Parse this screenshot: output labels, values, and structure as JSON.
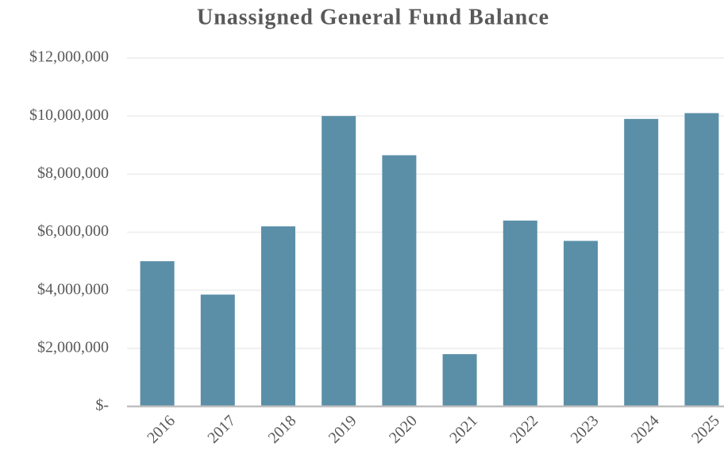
{
  "chart_data": {
    "type": "bar",
    "title": "Unassigned General Fund Balance",
    "categories": [
      "2016",
      "2017",
      "2018",
      "2019",
      "2020",
      "2021",
      "2022",
      "2023",
      "2024",
      "2025"
    ],
    "values": [
      5000000,
      3850000,
      6200000,
      10000000,
      8650000,
      1800000,
      6400000,
      5700000,
      9900000,
      10100000
    ],
    "color": "#5b8fa8",
    "ylim": [
      0,
      12000000
    ],
    "yticks": [
      {
        "value": 0,
        "label": "$-"
      },
      {
        "value": 2000000,
        "label": "$2,000,000"
      },
      {
        "value": 4000000,
        "label": "$4,000,000"
      },
      {
        "value": 6000000,
        "label": "$6,000,000"
      },
      {
        "value": 8000000,
        "label": "$8,000,000"
      },
      {
        "value": 10000000,
        "label": "$10,000,000"
      },
      {
        "value": 12000000,
        "label": "$12,000,000"
      }
    ],
    "grid": true
  }
}
